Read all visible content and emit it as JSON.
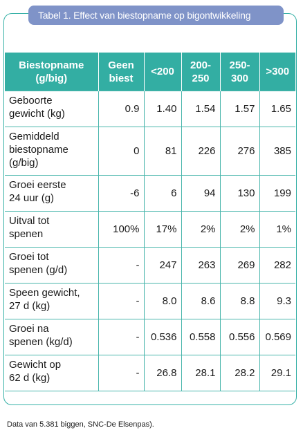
{
  "title": "Tabel 1. Effect van biestopname op bigontwikkeling",
  "table": {
    "headers": [
      "Biestopname\n(g/big)",
      "Geen\nbiest",
      "<200",
      "200-\n250",
      "250-\n300",
      ">300"
    ],
    "rows": [
      {
        "label": "Geboorte\ngewicht (kg)",
        "cells": [
          "0.9",
          "1.40",
          "1.54",
          "1.57",
          "1.65"
        ]
      },
      {
        "label": "Gemiddeld\nbiestopname\n(g/big)",
        "cells": [
          "0",
          "81",
          "226",
          "276",
          "385"
        ]
      },
      {
        "label": "Groei eerste\n24 uur  (g)",
        "cells": [
          "-6",
          "6",
          "94",
          "130",
          "199"
        ]
      },
      {
        "label": "Uitval tot\nspenen",
        "cells": [
          "100%",
          "17%",
          "2%",
          "2%",
          "1%"
        ]
      },
      {
        "label": "Groei tot\nspenen (g/d)",
        "cells": [
          "-",
          "247",
          "263",
          "269",
          "282"
        ]
      },
      {
        "label": "Speen gewicht,\n27 d (kg)",
        "cells": [
          "-",
          "8.0",
          "8.6",
          "8.8",
          "9.3"
        ]
      },
      {
        "label": "Groei na\nspenen (kg/d)",
        "cells": [
          "-",
          "0.536",
          "0.558",
          "0.556",
          "0.569"
        ]
      },
      {
        "label": "Gewicht op\n62 d (kg)",
        "cells": [
          "-",
          "26.8",
          "28.1",
          "28.2",
          "29.1"
        ]
      }
    ]
  },
  "caption": "Data van 5.381 biggen, SNC-De Elsenpas).",
  "colors": {
    "header_bg": "#33aea3",
    "border": "#47b5ab",
    "title_bg": "#7f93c8"
  }
}
